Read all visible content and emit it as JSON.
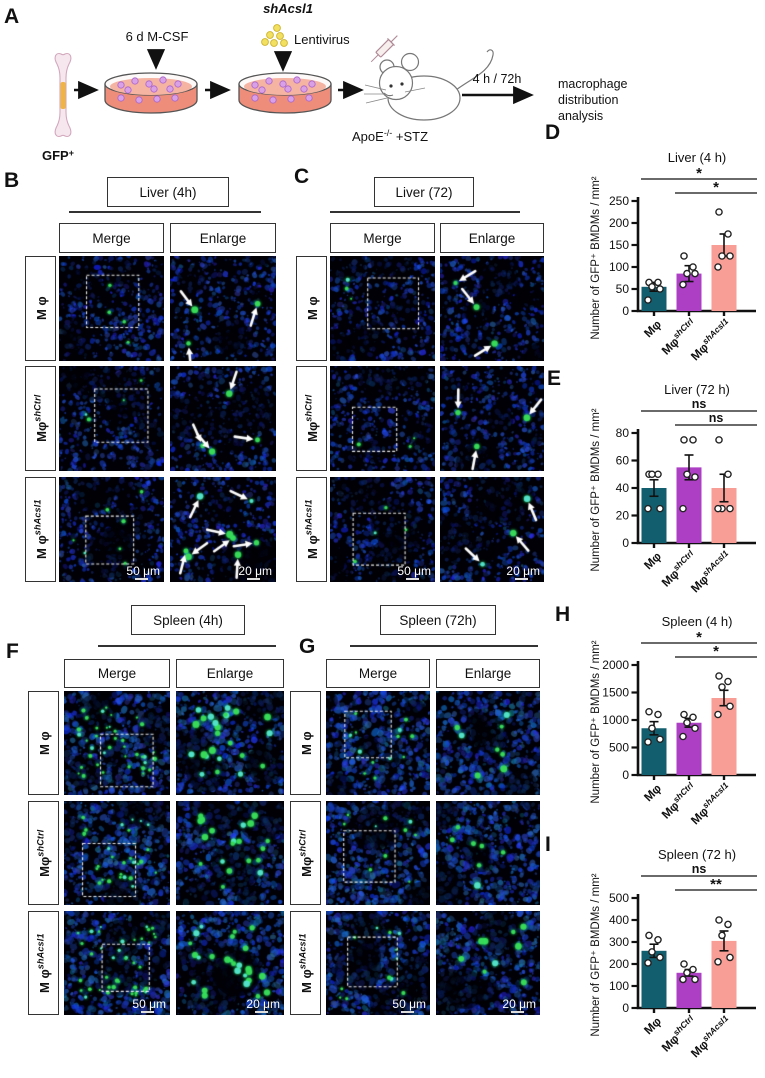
{
  "panel_a": {
    "letter": "A",
    "shacsl1": "shAcsl1",
    "mcsf": "6 d M-CSF",
    "lentivirus": "Lentivirus",
    "gfp": {
      "base": "GFP",
      "sup": "+"
    },
    "mouse": {
      "base": "ApoE",
      "sup": "-/-",
      "suffix": " +STZ"
    },
    "time": "4 h / 72h",
    "outcome": [
      "macrophage",
      "distribution",
      "analysis"
    ]
  },
  "colors": {
    "bar_teal": "#135e6e",
    "bar_purple": "#ad3fc4",
    "bar_salmon": "#f89e96",
    "gfp_green": "#27ae52",
    "dapi_blue": "#2244cc"
  },
  "micro_panels": [
    {
      "panel": "B",
      "title": "Liver (4h)",
      "headers": {
        "merge": "Merge",
        "enlarge": "Enlarge"
      },
      "rows": [
        {
          "base": "M φ",
          "sup": ""
        },
        {
          "base": "Mφ",
          "sup": "shCtrl"
        },
        {
          "base": "M φ",
          "sup": "shAcsl1"
        }
      ],
      "scalebars": {
        "merge": "50 μm",
        "enlarge": "20 μm"
      },
      "tissue": "liver",
      "green_merge": [
        4,
        4,
        7
      ],
      "green_enlarge": [
        3,
        4,
        8
      ],
      "arrows": true
    },
    {
      "panel": "C",
      "title": "Liver (72)",
      "headers": {
        "merge": "Merge",
        "enlarge": "Enlarge"
      },
      "rows": [
        {
          "base": "M φ",
          "sup": ""
        },
        {
          "base": "Mφ",
          "sup": "shCtrl"
        },
        {
          "base": "M φ",
          "sup": "shAcsl1"
        }
      ],
      "scalebars": {
        "merge": "50 μm",
        "enlarge": "20 μm"
      },
      "tissue": "liver",
      "green_merge": [
        3,
        3,
        4
      ],
      "green_enlarge": [
        3,
        3,
        3
      ],
      "arrows": true
    },
    {
      "panel": "F",
      "title": "Spleen (4h)",
      "headers": {
        "merge": "Merge",
        "enlarge": "Enlarge"
      },
      "rows": [
        {
          "base": "M φ",
          "sup": ""
        },
        {
          "base": "Mφ",
          "sup": "shCtrl"
        },
        {
          "base": "M φ",
          "sup": "shAcsl1"
        }
      ],
      "scalebars": {
        "merge": "50 μm",
        "enlarge": "20 μm"
      },
      "tissue": "spleen",
      "green_merge": [
        38,
        28,
        40
      ],
      "green_enlarge": [
        24,
        20,
        26
      ],
      "arrows": false
    },
    {
      "panel": "G",
      "title": "Spleen (72h)",
      "headers": {
        "merge": "Merge",
        "enlarge": "Enlarge"
      },
      "rows": [
        {
          "base": "M φ",
          "sup": ""
        },
        {
          "base": "Mφ",
          "sup": "shCtrl"
        },
        {
          "base": "M φ",
          "sup": "shAcsl1"
        }
      ],
      "scalebars": {
        "merge": "50 μm",
        "enlarge": "20 μm"
      },
      "tissue": "spleen",
      "green_merge": [
        14,
        10,
        12
      ],
      "green_enlarge": [
        8,
        7,
        9
      ],
      "arrows": false
    }
  ],
  "chart_data": [
    {
      "panel": "D",
      "type": "bar",
      "title": "Liver (4 h)",
      "ylabel": "Number of GFP⁺ BMDMs / mm²",
      "categories": [
        {
          "base": "Mφ",
          "sup": ""
        },
        {
          "base": "Mφ",
          "sup": "shCtrl"
        },
        {
          "base": "Mφ",
          "sup": "shAcsl1"
        }
      ],
      "values": [
        55,
        85,
        150
      ],
      "errors": [
        10,
        18,
        25
      ],
      "points": [
        [
          65,
          65,
          55,
          50,
          25
        ],
        [
          125,
          100,
          85,
          85,
          60
        ],
        [
          225,
          175,
          125,
          125,
          100
        ]
      ],
      "ylim": [
        0,
        250
      ],
      "ytick_step": 50,
      "significance": [
        {
          "from": 0,
          "to": 2,
          "label": "*"
        },
        {
          "from": 1,
          "to": 2,
          "label": "*"
        }
      ],
      "bar_colors": [
        "#135e6e",
        "#ad3fc4",
        "#f89e96"
      ]
    },
    {
      "panel": "E",
      "type": "bar",
      "title": "Liver (72 h)",
      "ylabel": "Number of GFP⁺ BMDMs / mm²",
      "categories": [
        {
          "base": "Mφ",
          "sup": ""
        },
        {
          "base": "Mφ",
          "sup": "shCtrl"
        },
        {
          "base": "Mφ",
          "sup": "shAcsl1"
        }
      ],
      "values": [
        40,
        55,
        40
      ],
      "errors": [
        6,
        9,
        10
      ],
      "points": [
        [
          50,
          50,
          50,
          25,
          25
        ],
        [
          75,
          75,
          50,
          48,
          25
        ],
        [
          75,
          50,
          25,
          25,
          25
        ]
      ],
      "ylim": [
        0,
        80
      ],
      "ytick_step": 20,
      "significance": [
        {
          "from": 0,
          "to": 2,
          "label": "ns"
        },
        {
          "from": 1,
          "to": 2,
          "label": "ns"
        }
      ],
      "bar_colors": [
        "#135e6e",
        "#ad3fc4",
        "#f89e96"
      ]
    },
    {
      "panel": "H",
      "type": "bar",
      "title": "Spleen (4 h)",
      "ylabel": "Number of GFP⁺ BMDMs / mm²",
      "categories": [
        {
          "base": "Mφ",
          "sup": ""
        },
        {
          "base": "Mφ",
          "sup": "shCtrl"
        },
        {
          "base": "Mφ",
          "sup": "shAcsl1"
        }
      ],
      "values": [
        850,
        950,
        1400
      ],
      "errors": [
        120,
        80,
        140
      ],
      "points": [
        [
          1150,
          1100,
          850,
          650,
          600
        ],
        [
          1100,
          1050,
          950,
          850,
          700
        ],
        [
          1800,
          1700,
          1600,
          1250,
          1100
        ]
      ],
      "ylim": [
        0,
        2000
      ],
      "ytick_step": 500,
      "significance": [
        {
          "from": 0,
          "to": 2,
          "label": "*"
        },
        {
          "from": 1,
          "to": 2,
          "label": "*"
        }
      ],
      "bar_colors": [
        "#135e6e",
        "#ad3fc4",
        "#f89e96"
      ]
    },
    {
      "panel": "I",
      "type": "bar",
      "title": "Spleen (72 h)",
      "ylabel": "Number of GFP⁺ BMDMs / mm²",
      "categories": [
        {
          "base": "Mφ",
          "sup": ""
        },
        {
          "base": "Mφ",
          "sup": "shCtrl"
        },
        {
          "base": "Mφ",
          "sup": "shAcsl1"
        }
      ],
      "values": [
        260,
        160,
        305
      ],
      "errors": [
        30,
        15,
        45
      ],
      "points": [
        [
          330,
          310,
          255,
          230,
          205
        ],
        [
          200,
          175,
          160,
          130,
          130
        ],
        [
          400,
          380,
          330,
          230,
          210
        ]
      ],
      "ylim": [
        0,
        500
      ],
      "ytick_step": 100,
      "significance": [
        {
          "from": 0,
          "to": 2,
          "label": "ns"
        },
        {
          "from": 1,
          "to": 2,
          "label": "**"
        }
      ],
      "bar_colors": [
        "#135e6e",
        "#ad3fc4",
        "#f89e96"
      ]
    }
  ]
}
